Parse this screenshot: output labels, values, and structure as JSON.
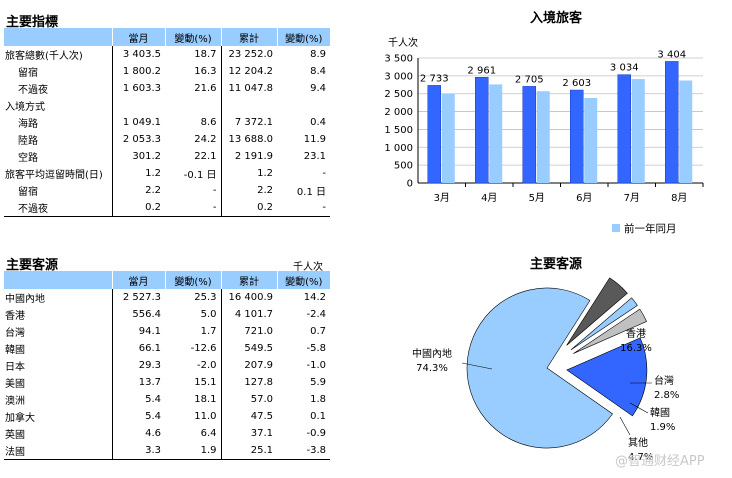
{
  "indicators": {
    "title": "主要指標",
    "headers": [
      "",
      "當月",
      "變動(%)",
      "累計",
      "變動(%)"
    ],
    "rows": [
      {
        "label": "旅客總數(千人次)",
        "indent": false,
        "c1": "3 403.5",
        "c2": "18.7",
        "c3": "23 252.0",
        "c4": "8.9"
      },
      {
        "label": "留宿",
        "indent": true,
        "c1": "1 800.2",
        "c2": "16.3",
        "c3": "12 204.2",
        "c4": "8.4"
      },
      {
        "label": "不過夜",
        "indent": true,
        "c1": "1 603.3",
        "c2": "21.6",
        "c3": "11 047.8",
        "c4": "9.4"
      },
      {
        "label": "入境方式",
        "indent": false,
        "c1": "",
        "c2": "",
        "c3": "",
        "c4": ""
      },
      {
        "label": "海路",
        "indent": true,
        "c1": "1 049.1",
        "c2": "8.6",
        "c3": "7 372.1",
        "c4": "0.4"
      },
      {
        "label": "陸路",
        "indent": true,
        "c1": "2 053.3",
        "c2": "24.2",
        "c3": "13 688.0",
        "c4": "11.9"
      },
      {
        "label": "空路",
        "indent": true,
        "c1": "301.2",
        "c2": "22.1",
        "c3": "2 191.9",
        "c4": "23.1"
      },
      {
        "label": "旅客平均逗留時間(日)",
        "indent": false,
        "c1": "1.2",
        "c2": "-0.1 日",
        "c3": "1.2",
        "c4": "-"
      },
      {
        "label": "留宿",
        "indent": true,
        "c1": "2.2",
        "c2": "-",
        "c3": "2.2",
        "c4": "0.1 日"
      },
      {
        "label": "不過夜",
        "indent": true,
        "c1": "0.2",
        "c2": "-",
        "c3": "0.2",
        "c4": "-"
      }
    ]
  },
  "sources": {
    "title": "主要客源",
    "unit": "千人次",
    "headers": [
      "",
      "當月",
      "變動(%)",
      "累計",
      "變動(%)"
    ],
    "rows": [
      {
        "label": "中國內地",
        "c1": "2 527.3",
        "c2": "25.3",
        "c3": "16 400.9",
        "c4": "14.2"
      },
      {
        "label": "香港",
        "c1": "556.4",
        "c2": "5.0",
        "c3": "4 101.7",
        "c4": "-2.4"
      },
      {
        "label": "台灣",
        "c1": "94.1",
        "c2": "1.7",
        "c3": "721.0",
        "c4": "0.7"
      },
      {
        "label": "韓國",
        "c1": "66.1",
        "c2": "-12.6",
        "c3": "549.5",
        "c4": "-5.8"
      },
      {
        "label": "日本",
        "c1": "29.3",
        "c2": "-2.0",
        "c3": "207.9",
        "c4": "-1.0"
      },
      {
        "label": "美國",
        "c1": "13.7",
        "c2": "15.1",
        "c3": "127.8",
        "c4": "5.9"
      },
      {
        "label": "澳洲",
        "c1": "5.4",
        "c2": "18.1",
        "c3": "57.0",
        "c4": "1.8"
      },
      {
        "label": "加拿大",
        "c1": "5.4",
        "c2": "11.0",
        "c3": "47.5",
        "c4": "0.1"
      },
      {
        "label": "英國",
        "c1": "4.6",
        "c2": "6.4",
        "c3": "37.1",
        "c4": "-0.9"
      },
      {
        "label": "法國",
        "c1": "3.3",
        "c2": "1.9",
        "c3": "25.1",
        "c4": "-3.8"
      }
    ]
  },
  "chart_data": [
    {
      "type": "bar",
      "title": "入境旅客",
      "ylabel": "千人次",
      "categories": [
        "3月",
        "4月",
        "5月",
        "6月",
        "7月",
        "8月"
      ],
      "ylim": [
        0,
        3500
      ],
      "yticks": [
        "0",
        "500",
        "1 000",
        "1 500",
        "2 000",
        "2 500",
        "3 000",
        "3 500"
      ],
      "series": [
        {
          "values": [
            2733,
            2961,
            2705,
            2603,
            3034,
            3404
          ],
          "labels": [
            "2 733",
            "2 961",
            "2 705",
            "2 603",
            "3 034",
            "3 404"
          ],
          "color": "#3366ff"
        },
        {
          "name": "前一年同月",
          "values": [
            2500,
            2760,
            2570,
            2380,
            2910,
            2870
          ],
          "color": "#99ccff"
        }
      ],
      "grid": true,
      "legend": "bottom-right"
    },
    {
      "type": "pie",
      "title": "主要客源",
      "slices": [
        {
          "label": "中國內地",
          "value": 74.3,
          "pct": "74.3%",
          "color": "#99ccff",
          "explode": false
        },
        {
          "label": "香港",
          "value": 16.3,
          "pct": "16.3%",
          "color": "#3366ff",
          "explode": true
        },
        {
          "label": "台灣",
          "value": 2.8,
          "pct": "2.8%",
          "color": "#c0c0c0",
          "explode": true
        },
        {
          "label": "韓國",
          "value": 1.9,
          "pct": "1.9%",
          "color": "#99ccff",
          "explode": true
        },
        {
          "label": "其他",
          "value": 4.7,
          "pct": "4.7%",
          "color": "#595959",
          "explode": true
        }
      ]
    }
  ],
  "watermark": "@智通财经APP"
}
